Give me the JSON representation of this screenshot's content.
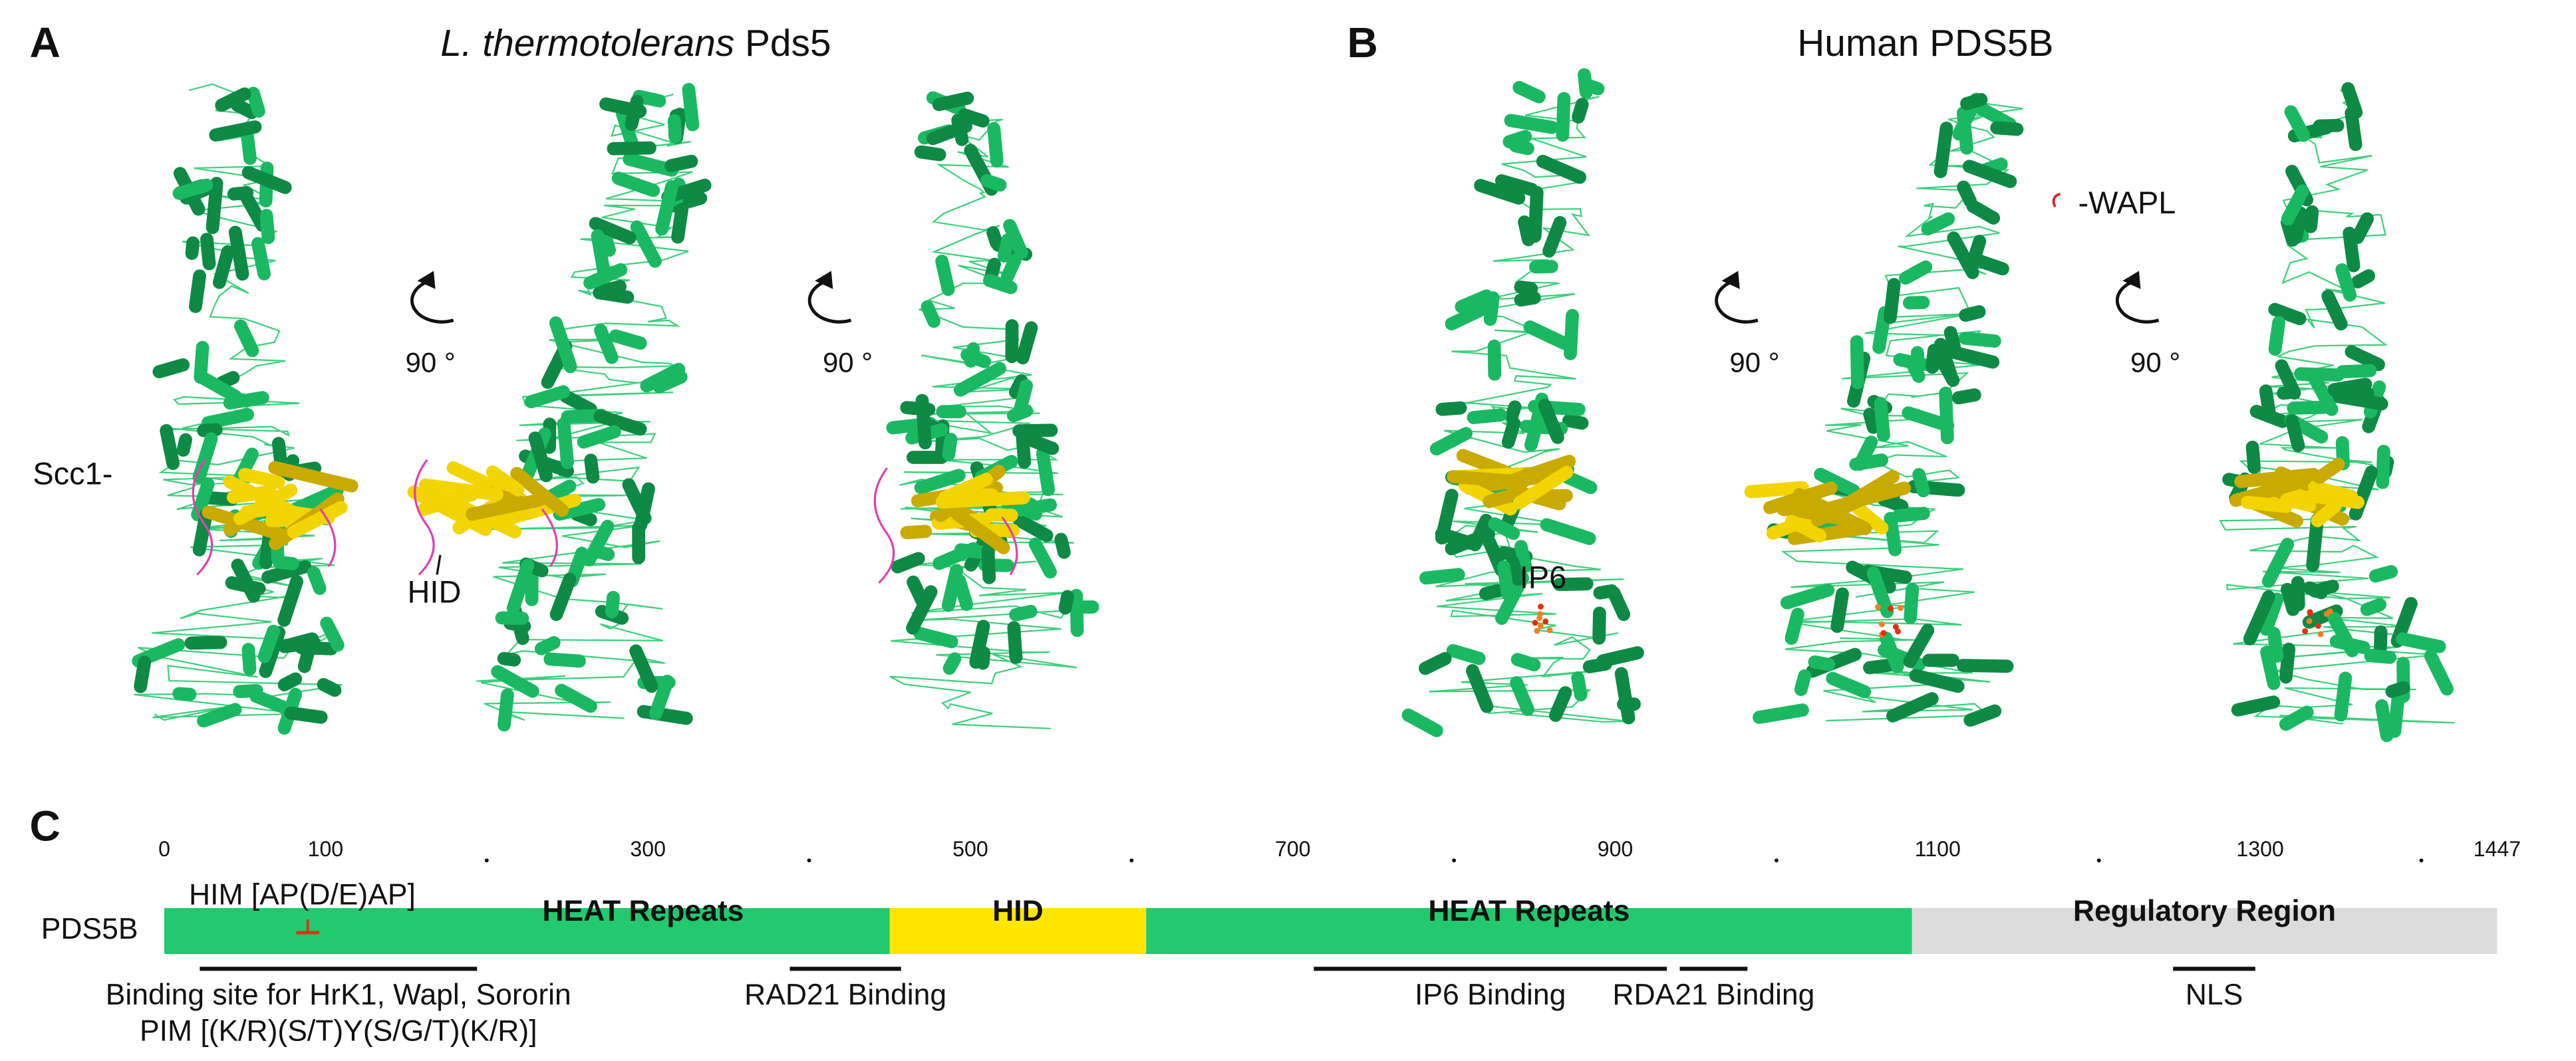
{
  "panel_a": {
    "label": "A",
    "title_italic": "L. thermotolerans",
    "title_rest": " Pds5",
    "scc1": "Scc1-",
    "hid": "HID",
    "rotation": [
      "90 °",
      "90 °"
    ]
  },
  "panel_b": {
    "label": "B",
    "title": "Human PDS5B",
    "ip6": "IP6",
    "wapl": "-WAPL",
    "rotation": [
      "90 °",
      "90 °"
    ]
  },
  "panel_c": {
    "label": "C",
    "protein": "PDS5B",
    "length_ticks": [
      0,
      100,
      300,
      500,
      700,
      900,
      1100,
      1300,
      1447
    ],
    "minor_ticks": [
      200,
      400,
      600,
      800,
      1000,
      1200,
      1400
    ],
    "domains": [
      {
        "name": "HEAT Repeats",
        "start": 0,
        "end": 450,
        "color": "#22c96e"
      },
      {
        "name": "HID",
        "start": 450,
        "end": 609,
        "color": "#ffe600"
      },
      {
        "name": "HEAT Repeats",
        "start": 609,
        "end": 1084,
        "color": "#22c96e"
      },
      {
        "name": "Regulatory Region",
        "start": 1084,
        "end": 1447,
        "color": "#dcdcdc"
      }
    ],
    "motif": {
      "name": "HIM [AP(D/E)AP]",
      "position": 89,
      "color": "#e03010"
    },
    "binding": [
      {
        "label": [
          "Binding site for HrK1, Wapl, Sororin",
          "PIM [(K/R)(S/T)Y(S/G/T)(K/R)]"
        ],
        "start": 22,
        "end": 194
      },
      {
        "label": [
          "RAD21 Binding"
        ],
        "start": 388,
        "end": 457
      },
      {
        "label": [
          "IP6 Binding"
        ],
        "start": 713,
        "end": 932
      },
      {
        "label": [
          "RDA21 Binding"
        ],
        "start": 940,
        "end": 982
      },
      {
        "label": [
          "NLS"
        ],
        "start": 1246,
        "end": 1297
      }
    ]
  }
}
